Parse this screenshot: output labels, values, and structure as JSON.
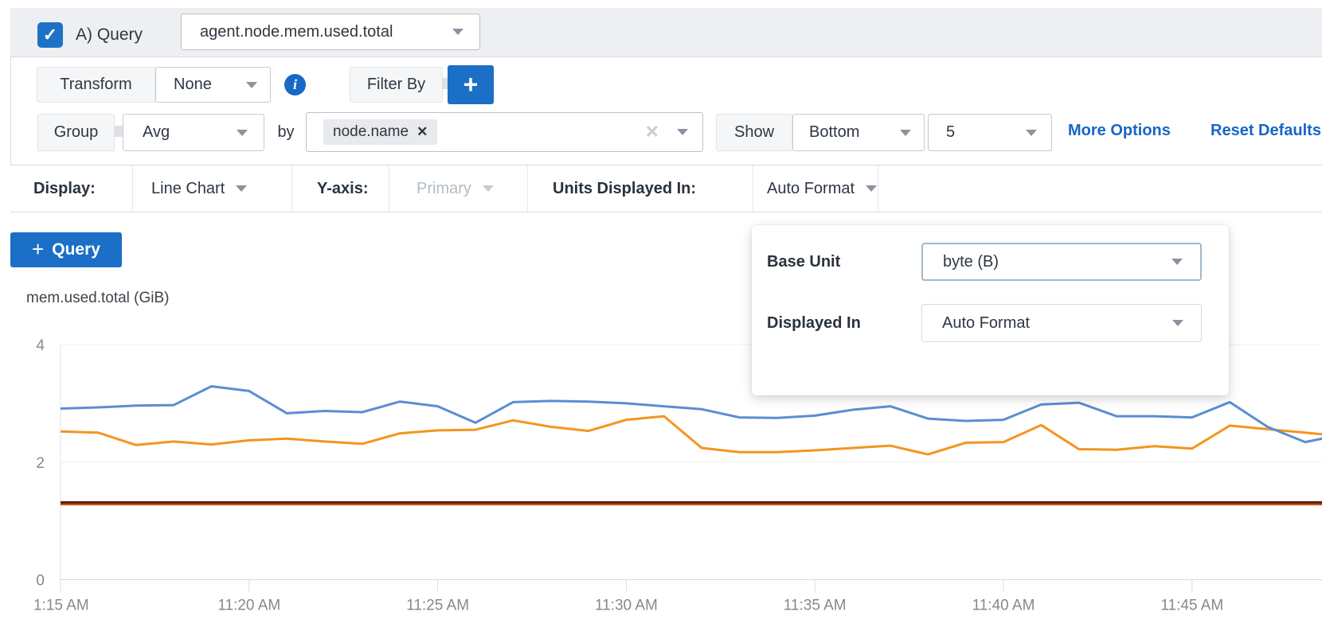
{
  "query_row": {
    "label": "A) Query",
    "checkbox_checked": "✓",
    "metric": "agent.node.mem.used.total"
  },
  "transform_row": {
    "transform_label": "Transform",
    "transform_value": "None",
    "info_icon": "i",
    "filter_by_label": "Filter By",
    "add_filter_label": "+"
  },
  "group_row": {
    "group_label": "Group",
    "aggregation": "Avg",
    "by_label": "by",
    "group_by_tags": [
      "node.name"
    ],
    "chip_remove": "✕",
    "clear_all": "✕",
    "show_label": "Show",
    "show_direction": "Bottom",
    "show_count": "5",
    "more_options": "More Options",
    "reset_defaults": "Reset Defaults"
  },
  "display_row": {
    "display_label": "Display:",
    "display_value": "Line Chart",
    "yaxis_label": "Y-axis:",
    "yaxis_value": "Primary",
    "units_label": "Units Displayed In:",
    "units_value": "Auto Format"
  },
  "units_popup": {
    "base_unit_label": "Base Unit",
    "base_unit_value": "byte (B)",
    "displayed_in_label": "Displayed In",
    "displayed_in_value": "Auto Format"
  },
  "add_query_button": {
    "plus": "+",
    "label": "Query"
  },
  "colors": {
    "accent_blue": "#1b6fc7",
    "link_blue": "#1766c4",
    "checkbox_blue": "#1d72c8"
  },
  "chart_data": {
    "type": "line",
    "title": "mem.used.total (GiB)",
    "ylabel": "GiB",
    "ylim": [
      0,
      4
    ],
    "y_ticks": [
      0,
      2,
      4
    ],
    "x_tick_labels": [
      "1:15 AM",
      "11:20 AM",
      "11:25 AM",
      "11:30 AM",
      "11:35 AM",
      "11:40 AM",
      "11:45 AM"
    ],
    "x_interval_minutes": 5,
    "points_interval_minutes": 1,
    "grid": "horizontal",
    "legend_position": "none",
    "series": [
      {
        "name": "series-red-orange-flat",
        "color": "#c94f17",
        "flat_value": 1.285
      },
      {
        "name": "series-dark-red-flat",
        "color": "#5e1d09",
        "flat_value": 1.315
      },
      {
        "name": "series-orange",
        "color": "#f5941f",
        "values": [
          2.52,
          2.5,
          2.29,
          2.35,
          2.3,
          2.37,
          2.4,
          2.35,
          2.31,
          2.49,
          2.54,
          2.55,
          2.71,
          2.6,
          2.53,
          2.72,
          2.78,
          2.24,
          2.17,
          2.17,
          2.2,
          2.24,
          2.28,
          2.13,
          2.33,
          2.34,
          2.63,
          2.22,
          2.21,
          2.27,
          2.23,
          2.62,
          2.56,
          2.5,
          2.44
        ]
      },
      {
        "name": "series-blue",
        "color": "#5b8dd3",
        "values": [
          2.91,
          2.93,
          2.96,
          2.97,
          3.29,
          3.21,
          2.83,
          2.87,
          2.85,
          3.03,
          2.95,
          2.67,
          3.02,
          3.04,
          3.03,
          3.0,
          2.95,
          2.9,
          2.76,
          2.75,
          2.79,
          2.89,
          2.95,
          2.74,
          2.7,
          2.72,
          2.98,
          3.01,
          2.78,
          2.78,
          2.76,
          3.02,
          2.6,
          2.34,
          2.47
        ]
      }
    ]
  }
}
